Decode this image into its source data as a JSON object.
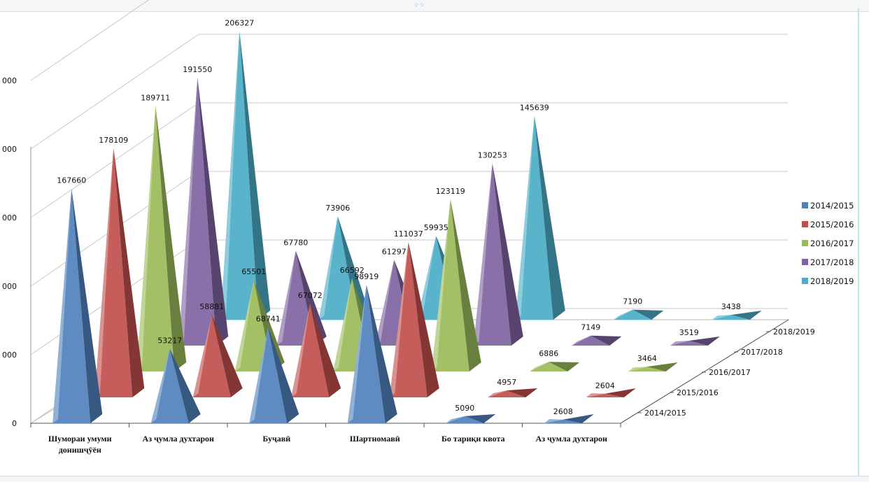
{
  "chart_data": {
    "type": "bar",
    "subtype": "3d-pyramid",
    "title": "",
    "xlabel": "",
    "ylabel": "",
    "categories": [
      "Шумораи умуми донишҷӯён",
      "Аз ҷумла духтарон",
      "Буҷавӣ",
      "Шартномавӣ",
      "Бо тариқи квота",
      "Аз ҷумла духтарон"
    ],
    "series": [
      {
        "name": "2014/2015",
        "color": "#4f81bd",
        "values": [
          167660,
          53217,
          68741,
          98919,
          5090,
          2608
        ]
      },
      {
        "name": "2015/2016",
        "color": "#c0504d",
        "values": [
          178109,
          58881,
          67072,
          111037,
          4957,
          2604
        ]
      },
      {
        "name": "2016/2017",
        "color": "#9bbb59",
        "values": [
          189711,
          65501,
          66592,
          123119,
          6886,
          3464
        ]
      },
      {
        "name": "2017/2018",
        "color": "#8064a2",
        "values": [
          191550,
          67780,
          61297,
          130253,
          7149,
          3519
        ]
      },
      {
        "name": "2018/2019",
        "color": "#4bacc6",
        "values": [
          206327,
          73906,
          59935,
          145639,
          7190,
          3438
        ]
      }
    ],
    "y_ticks": [
      "0",
      "000",
      "000",
      "000",
      "000",
      "000"
    ],
    "ylim": [
      0,
      250000
    ],
    "grid": true,
    "legend": "right"
  }
}
